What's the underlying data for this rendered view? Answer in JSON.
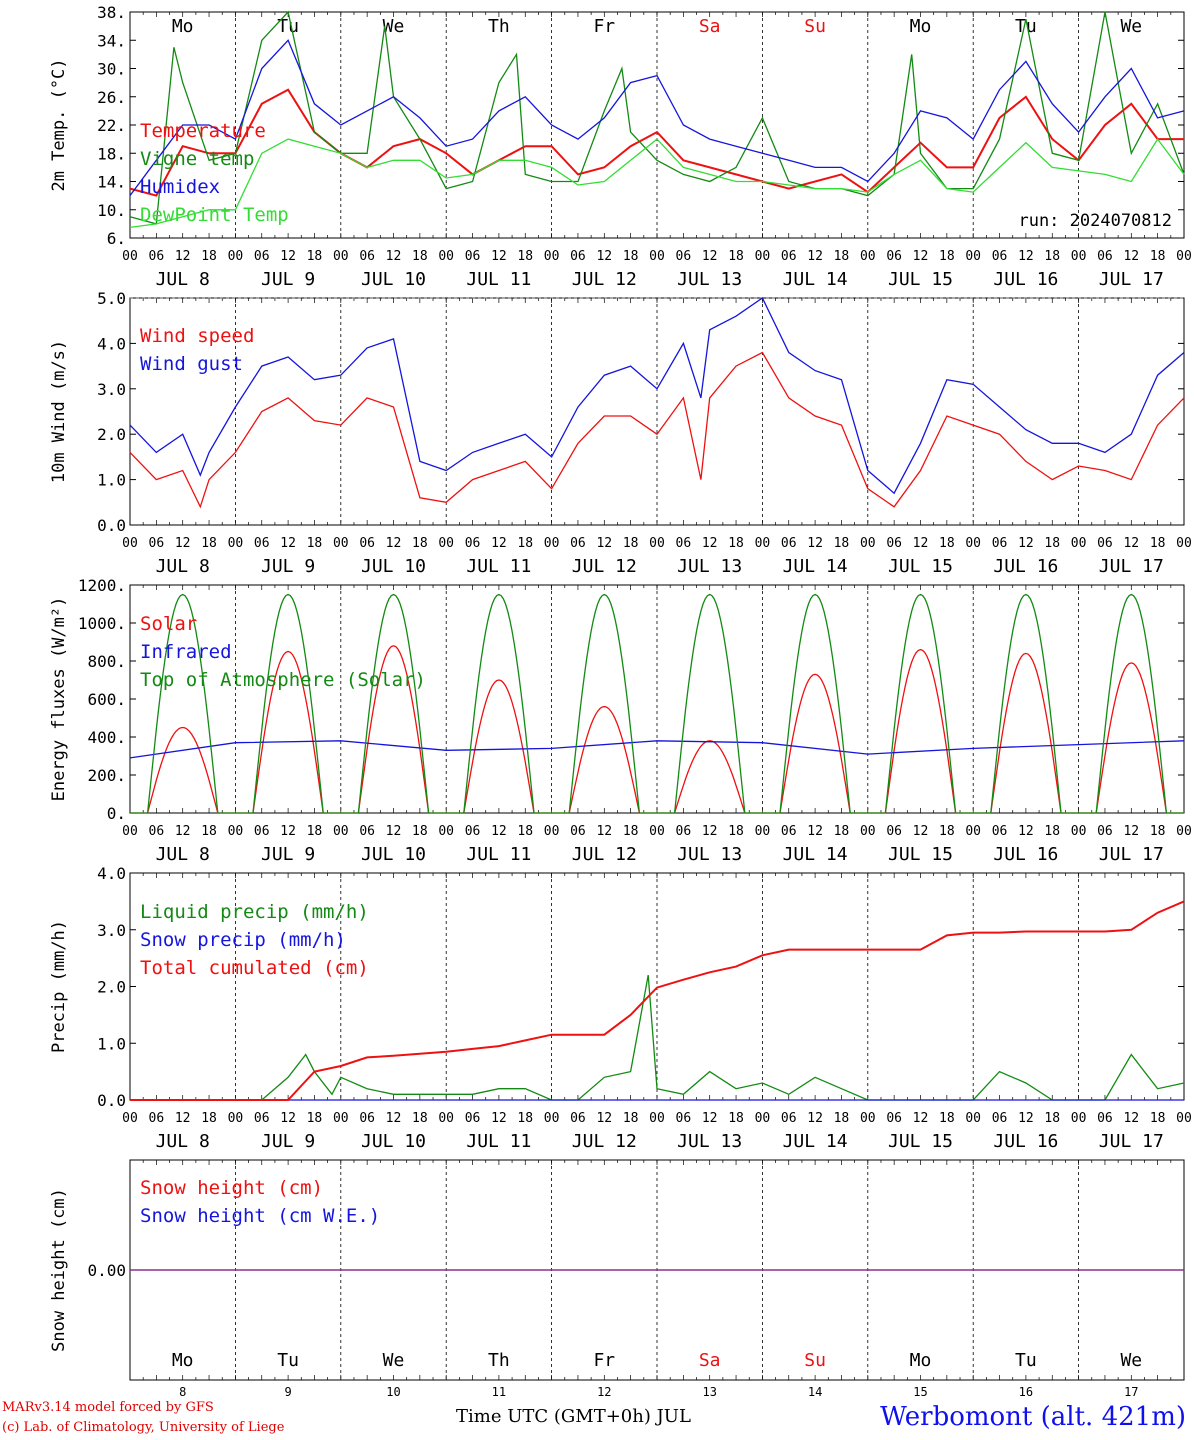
{
  "colors": {
    "red": "#ee1111",
    "dark_green": "#138a13",
    "blue": "#1515dd",
    "light_green": "#33dd33",
    "purple": "#7a2a9a"
  },
  "days": {
    "labels": [
      "JUL  8",
      "JUL  9",
      "JUL 10",
      "JUL 11",
      "JUL 12",
      "JUL 13",
      "JUL 14",
      "JUL 15",
      "JUL 16",
      "JUL 17"
    ],
    "weekdays": [
      "Mo",
      "Tu",
      "We",
      "Th",
      "Fr",
      "Sa",
      "Su",
      "Mo",
      "Tu",
      "We"
    ],
    "weekday_colors": [
      "#000000",
      "#000000",
      "#000000",
      "#000000",
      "#000000",
      "#ee1111",
      "#ee1111",
      "#000000",
      "#000000",
      "#000000"
    ],
    "numbers": [
      "8",
      "9",
      "10",
      "11",
      "12",
      "13",
      "14",
      "15",
      "16",
      "17"
    ],
    "hour_ticks": [
      "00",
      "06",
      "12",
      "18"
    ],
    "final_hour_tick": "00"
  },
  "chart_data": [
    {
      "type": "line",
      "ylabel": "2m Temp. (°C)",
      "yticks": [
        "38.",
        "34.",
        "30.",
        "26.",
        "22.",
        "18.",
        "14.",
        "10.",
        "6."
      ],
      "ylim": [
        6,
        38
      ],
      "annotation": "run: 2024070812",
      "x_units": "hours since JUL 8 00 UTC",
      "series": [
        {
          "name": "Temperature",
          "color": "#ee1111",
          "x": [
            0,
            6,
            12,
            18,
            24,
            30,
            36,
            42,
            48,
            54,
            60,
            66,
            72,
            78,
            84,
            90,
            96,
            102,
            108,
            114,
            120,
            126,
            132,
            138,
            144,
            150,
            156,
            162,
            168,
            174,
            180,
            186,
            192,
            198,
            204,
            210,
            216,
            222,
            228,
            234,
            240
          ],
          "y": [
            13,
            12,
            19,
            18,
            18,
            25,
            27,
            21,
            18,
            16,
            19,
            20,
            18,
            15,
            17,
            19,
            19,
            15,
            16,
            19,
            21,
            17,
            16,
            15,
            14,
            13,
            14,
            15,
            12.5,
            16,
            19.5,
            16,
            16,
            23,
            26,
            20,
            17,
            22,
            25,
            20,
            20
          ]
        },
        {
          "name": "Vigne temp",
          "color": "#138a13",
          "x": [
            0,
            6,
            10,
            12,
            18,
            24,
            30,
            36,
            42,
            48,
            54,
            58,
            60,
            66,
            72,
            78,
            84,
            88,
            90,
            96,
            102,
            108,
            112,
            114,
            120,
            126,
            132,
            138,
            144,
            150,
            156,
            162,
            168,
            174,
            178,
            180,
            186,
            192,
            198,
            204,
            210,
            216,
            222,
            228,
            234,
            240
          ],
          "y": [
            9,
            8,
            33,
            28,
            17,
            18,
            34,
            38,
            21,
            18,
            18,
            36,
            26,
            20,
            13,
            14,
            28,
            32,
            15,
            14,
            14,
            24,
            30,
            21,
            17,
            15,
            14,
            16,
            23,
            14,
            13,
            13,
            12,
            15,
            32,
            18,
            13,
            13,
            20,
            37,
            18,
            17,
            38,
            18,
            25,
            15
          ]
        },
        {
          "name": "Humidex",
          "color": "#1515dd",
          "x": [
            0,
            6,
            12,
            18,
            24,
            30,
            36,
            42,
            48,
            54,
            60,
            66,
            72,
            78,
            84,
            90,
            96,
            102,
            108,
            114,
            120,
            126,
            132,
            138,
            144,
            150,
            156,
            162,
            168,
            174,
            180,
            186,
            192,
            198,
            204,
            210,
            216,
            222,
            228,
            234,
            240
          ],
          "y": [
            12,
            17,
            22,
            22,
            20,
            30,
            34,
            25,
            22,
            24,
            26,
            23,
            19,
            20,
            24,
            26,
            22,
            20,
            23,
            28,
            29,
            22,
            20,
            19,
            18,
            17,
            16,
            16,
            14,
            18,
            24,
            23,
            20,
            27,
            31,
            25,
            21,
            26,
            30,
            23,
            24
          ]
        },
        {
          "name": "DewPoint Temp",
          "color": "#33dd33",
          "x": [
            0,
            6,
            12,
            18,
            24,
            30,
            36,
            42,
            48,
            54,
            60,
            66,
            72,
            78,
            84,
            90,
            96,
            102,
            108,
            114,
            120,
            126,
            132,
            138,
            144,
            150,
            156,
            162,
            168,
            174,
            180,
            186,
            192,
            198,
            204,
            210,
            216,
            222,
            228,
            234,
            240
          ],
          "y": [
            7.5,
            8,
            9,
            10,
            10,
            18,
            20,
            19,
            18,
            16,
            17,
            17,
            14.5,
            15,
            17,
            17,
            16,
            13.5,
            14,
            17,
            20,
            16,
            15,
            14,
            14,
            13.5,
            13,
            13,
            12.5,
            15,
            17,
            13,
            12.5,
            16,
            19.5,
            16,
            15.5,
            15,
            14,
            20,
            15
          ]
        }
      ]
    },
    {
      "type": "line",
      "ylabel": "10m Wind (m/s)",
      "yticks": [
        "5.0",
        "4.0",
        "3.0",
        "2.0",
        "1.0",
        "0.0"
      ],
      "ylim": [
        0,
        5
      ],
      "dashed_max_line": 5.0,
      "series": [
        {
          "name": "Wind speed",
          "color": "#ee1111",
          "x": [
            0,
            6,
            12,
            16,
            18,
            24,
            30,
            36,
            42,
            48,
            54,
            60,
            66,
            72,
            78,
            84,
            90,
            96,
            102,
            108,
            114,
            120,
            126,
            130,
            132,
            138,
            144,
            150,
            156,
            162,
            168,
            174,
            180,
            186,
            192,
            198,
            204,
            210,
            216,
            222,
            228,
            234,
            240
          ],
          "y": [
            1.6,
            1.0,
            1.2,
            0.4,
            1.0,
            1.6,
            2.5,
            2.8,
            2.3,
            2.2,
            2.8,
            2.6,
            0.6,
            0.5,
            1.0,
            1.2,
            1.4,
            0.8,
            1.8,
            2.4,
            2.4,
            2.0,
            2.8,
            1.0,
            2.8,
            3.5,
            3.8,
            2.8,
            2.4,
            2.2,
            0.8,
            0.4,
            1.2,
            2.4,
            2.2,
            2.0,
            1.4,
            1.0,
            1.3,
            1.2,
            1.0,
            2.2,
            2.8
          ]
        },
        {
          "name": "Wind gust",
          "color": "#1515dd",
          "x": [
            0,
            6,
            12,
            16,
            18,
            24,
            30,
            36,
            42,
            48,
            54,
            60,
            66,
            72,
            78,
            84,
            90,
            96,
            102,
            108,
            114,
            120,
            126,
            130,
            132,
            138,
            144,
            150,
            156,
            162,
            168,
            174,
            180,
            186,
            192,
            198,
            204,
            210,
            216,
            222,
            228,
            234,
            240
          ],
          "y": [
            2.2,
            1.6,
            2.0,
            1.1,
            1.6,
            2.6,
            3.5,
            3.7,
            3.2,
            3.3,
            3.9,
            4.1,
            1.4,
            1.2,
            1.6,
            1.8,
            2.0,
            1.5,
            2.6,
            3.3,
            3.5,
            3.0,
            4.0,
            2.8,
            4.3,
            4.6,
            5.0,
            3.8,
            3.4,
            3.2,
            1.2,
            0.7,
            1.8,
            3.2,
            3.1,
            2.6,
            2.1,
            1.8,
            1.8,
            1.6,
            2.0,
            3.3,
            3.8
          ]
        }
      ]
    },
    {
      "type": "line",
      "ylabel": "Energy fluxes (W/m²)",
      "yticks": [
        "1200.",
        "1000.",
        "800.",
        "600.",
        "400.",
        "200.",
        "0."
      ],
      "ylim": [
        0,
        1200
      ],
      "series": [
        {
          "name": "Solar",
          "color": "#ee1111",
          "daily_peaks": [
            450,
            850,
            880,
            700,
            560,
            380,
            730,
            860,
            840,
            790
          ]
        },
        {
          "name": "Infrared",
          "color": "#1515dd",
          "x": [
            0,
            24,
            48,
            72,
            96,
            120,
            144,
            168,
            192,
            216,
            240
          ],
          "y": [
            290,
            370,
            380,
            330,
            340,
            380,
            370,
            310,
            340,
            360,
            380
          ]
        },
        {
          "name": "Top of Atmosphere (Solar)",
          "color": "#138a13",
          "daily_peak": 1150
        }
      ]
    },
    {
      "type": "line",
      "ylabel": "Precip (mm/h)",
      "yticks": [
        "4.0",
        "3.0",
        "2.0",
        "1.0",
        "0.0"
      ],
      "ylim": [
        0,
        4
      ],
      "series": [
        {
          "name": "Liquid precip (mm/h)",
          "color": "#138a13",
          "x": [
            0,
            6,
            12,
            30,
            36,
            40,
            42,
            46,
            48,
            54,
            60,
            72,
            78,
            84,
            90,
            96,
            102,
            108,
            114,
            118,
            120,
            126,
            132,
            138,
            144,
            150,
            156,
            162,
            168,
            174,
            180,
            186,
            192,
            198,
            204,
            210,
            216,
            222,
            228,
            234,
            240
          ],
          "y": [
            0,
            0,
            0,
            0,
            0.4,
            0.8,
            0.5,
            0.1,
            0.4,
            0.2,
            0.1,
            0.1,
            0.1,
            0.2,
            0.2,
            0,
            0,
            0.4,
            0.5,
            2.2,
            0.2,
            0.1,
            0.5,
            0.2,
            0.3,
            0.1,
            0.4,
            0.2,
            0,
            0,
            0,
            0,
            0,
            0.5,
            0.3,
            0,
            0,
            0,
            0.8,
            0.2,
            0.3
          ]
        },
        {
          "name": "Snow precip (mm/h)",
          "color": "#1515dd",
          "x": [
            0,
            240
          ],
          "y": [
            0,
            0
          ]
        },
        {
          "name": "Total cumulated (cm)",
          "color": "#ee1111",
          "x": [
            0,
            36,
            42,
            48,
            54,
            60,
            72,
            78,
            84,
            90,
            96,
            108,
            114,
            120,
            126,
            132,
            138,
            144,
            150,
            156,
            162,
            168,
            174,
            180,
            186,
            192,
            198,
            204,
            210,
            216,
            222,
            228,
            234,
            240
          ],
          "y": [
            0,
            0,
            0.5,
            0.6,
            0.75,
            0.78,
            0.85,
            0.9,
            0.95,
            1.05,
            1.15,
            1.15,
            1.5,
            1.98,
            2.12,
            2.25,
            2.35,
            2.55,
            2.65,
            2.65,
            2.65,
            2.65,
            2.65,
            2.65,
            2.9,
            2.95,
            2.95,
            2.97,
            2.97,
            2.97,
            2.97,
            3.0,
            3.3,
            3.5
          ]
        }
      ]
    },
    {
      "type": "line",
      "ylabel": "Snow height (cm)",
      "yticks": [
        "0.00"
      ],
      "ylim": [
        -1,
        1
      ],
      "series": [
        {
          "name": "Snow height (cm)",
          "color": "#ee1111",
          "x": [
            0,
            240
          ],
          "y": [
            0,
            0
          ]
        },
        {
          "name": "Snow height (cm W.E.)",
          "color": "#1515dd",
          "x": [
            0,
            240
          ],
          "y": [
            0,
            0
          ]
        }
      ]
    }
  ],
  "footer": {
    "credit_line1": "MARv3.14 model forced by GFS",
    "credit_line2": "(c) Lab. of Climatology, University of Liege",
    "x_axis_label": "Time UTC (GMT+0h) JUL",
    "site": "Werbomont (alt. 421m)"
  }
}
